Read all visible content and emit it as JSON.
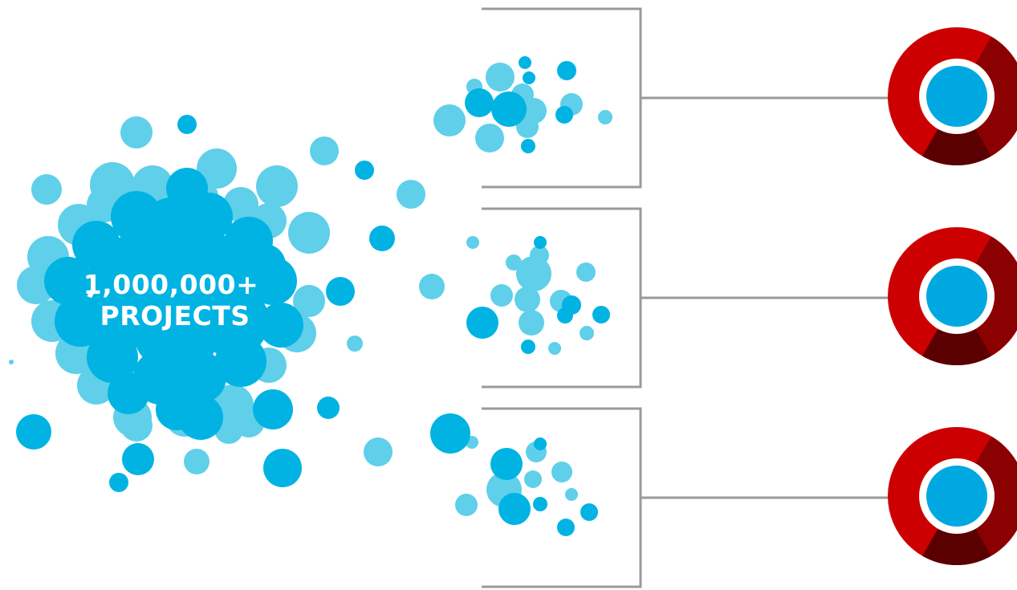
{
  "source": {
    "line1": "1,000,000+",
    "line2": "PROJECTS"
  },
  "groups": [
    {
      "name": "group-top"
    },
    {
      "name": "group-middle"
    },
    {
      "name": "group-bottom"
    }
  ],
  "colors": {
    "bubble_light": "#5fcfea",
    "bubble_dark": "#00b3e3",
    "bracket": "#9a9a9a",
    "product_red": "#cc0000",
    "product_dark_red": "#8b0000",
    "product_darkest": "#5a0000",
    "product_center": "#00a8e1"
  }
}
